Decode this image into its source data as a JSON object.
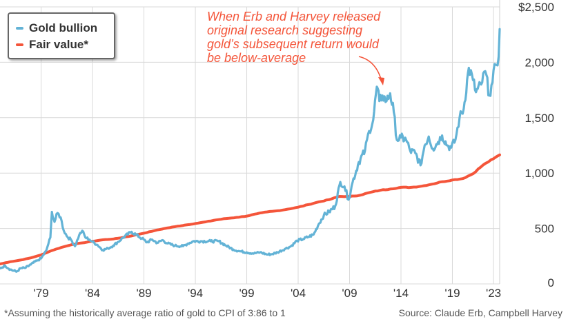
{
  "legend": {
    "gold_label": "Gold bullion",
    "fair_label": "Fair value*"
  },
  "annotation": {
    "lines": [
      "When Erb and Harvey released",
      "original research suggesting",
      "gold’s subsequent return would",
      "be below-average"
    ]
  },
  "footnote": "*Assuming the historically average ratio of gold to CPI of 3:86 to 1",
  "source": "Source: Claude Erb, Campbell Harvey",
  "colors": {
    "gold": "#63b3d6",
    "fair": "#f4553a",
    "annotation": "#f4553a"
  },
  "chart_data": {
    "type": "line",
    "x_tick_labels": [
      "'79",
      "'84",
      "'89",
      "'94",
      "'99",
      "'04",
      "'09",
      "'14",
      "'19",
      "'23"
    ],
    "x_tick_years": [
      1979,
      1984,
      1989,
      1994,
      1999,
      2004,
      2009,
      2014,
      2019,
      2023
    ],
    "y_tick_labels": [
      "0",
      "500",
      "1,000",
      "1,500",
      "2,000",
      "$2,500"
    ],
    "y_ticks": [
      0,
      500,
      1000,
      1500,
      2000,
      2500
    ],
    "ylim": [
      0,
      2500
    ],
    "xlim": [
      1975.0,
      2023.6
    ],
    "grid": true,
    "legend_position": "top-left",
    "series": [
      {
        "name": "Gold bullion",
        "points": [
          [
            1975.0,
            140
          ],
          [
            1975.5,
            165
          ],
          [
            1976.0,
            130
          ],
          [
            1976.6,
            110
          ],
          [
            1977.0,
            140
          ],
          [
            1977.5,
            145
          ],
          [
            1978.0,
            175
          ],
          [
            1978.6,
            210
          ],
          [
            1979.0,
            230
          ],
          [
            1979.5,
            300
          ],
          [
            1979.9,
            420
          ],
          [
            1980.05,
            650
          ],
          [
            1980.3,
            560
          ],
          [
            1980.6,
            640
          ],
          [
            1980.9,
            600
          ],
          [
            1981.2,
            480
          ],
          [
            1981.6,
            420
          ],
          [
            1981.9,
            400
          ],
          [
            1982.3,
            340
          ],
          [
            1982.7,
            440
          ],
          [
            1983.0,
            480
          ],
          [
            1983.3,
            420
          ],
          [
            1983.7,
            400
          ],
          [
            1984.0,
            380
          ],
          [
            1984.5,
            350
          ],
          [
            1985.0,
            305
          ],
          [
            1985.5,
            320
          ],
          [
            1986.0,
            345
          ],
          [
            1986.5,
            380
          ],
          [
            1987.0,
            420
          ],
          [
            1987.8,
            470
          ],
          [
            1988.3,
            440
          ],
          [
            1988.8,
            410
          ],
          [
            1989.3,
            375
          ],
          [
            1989.8,
            400
          ],
          [
            1990.3,
            370
          ],
          [
            1990.8,
            395
          ],
          [
            1991.3,
            365
          ],
          [
            1992.0,
            345
          ],
          [
            1992.8,
            340
          ],
          [
            1993.3,
            365
          ],
          [
            1993.8,
            385
          ],
          [
            1994.5,
            385
          ],
          [
            1995.5,
            385
          ],
          [
            1996.3,
            385
          ],
          [
            1997.0,
            345
          ],
          [
            1997.7,
            310
          ],
          [
            1998.3,
            295
          ],
          [
            1999.0,
            285
          ],
          [
            1999.7,
            275
          ],
          [
            2000.3,
            285
          ],
          [
            2001.0,
            265
          ],
          [
            2001.5,
            270
          ],
          [
            2002.0,
            285
          ],
          [
            2002.7,
            315
          ],
          [
            2003.3,
            340
          ],
          [
            2003.9,
            390
          ],
          [
            2004.5,
            405
          ],
          [
            2005.0,
            425
          ],
          [
            2005.5,
            445
          ],
          [
            2006.0,
            540
          ],
          [
            2006.5,
            620
          ],
          [
            2007.0,
            650
          ],
          [
            2007.6,
            700
          ],
          [
            2008.1,
            920
          ],
          [
            2008.5,
            880
          ],
          [
            2008.9,
            760
          ],
          [
            2009.3,
            920
          ],
          [
            2009.9,
            1100
          ],
          [
            2010.5,
            1200
          ],
          [
            2010.9,
            1380
          ],
          [
            2011.3,
            1480
          ],
          [
            2011.65,
            1780
          ],
          [
            2011.9,
            1650
          ],
          [
            2012.2,
            1700
          ],
          [
            2012.6,
            1650
          ],
          [
            2012.95,
            1720
          ],
          [
            2013.3,
            1550
          ],
          [
            2013.6,
            1300
          ],
          [
            2014.0,
            1320
          ],
          [
            2014.5,
            1300
          ],
          [
            2014.9,
            1200
          ],
          [
            2015.4,
            1180
          ],
          [
            2015.9,
            1070
          ],
          [
            2016.3,
            1250
          ],
          [
            2016.7,
            1330
          ],
          [
            2017.1,
            1220
          ],
          [
            2017.6,
            1280
          ],
          [
            2018.0,
            1340
          ],
          [
            2018.5,
            1250
          ],
          [
            2018.9,
            1230
          ],
          [
            2019.3,
            1300
          ],
          [
            2019.7,
            1500
          ],
          [
            2020.1,
            1580
          ],
          [
            2020.6,
            1950
          ],
          [
            2021.0,
            1840
          ],
          [
            2021.3,
            1730
          ],
          [
            2021.8,
            1800
          ],
          [
            2022.2,
            1920
          ],
          [
            2022.6,
            1700
          ],
          [
            2022.9,
            1820
          ],
          [
            2023.2,
            1980
          ],
          [
            2023.5,
            2050
          ],
          [
            2023.6,
            2300
          ]
        ]
      },
      {
        "name": "Fair value*",
        "points": [
          [
            1975.0,
            180
          ],
          [
            1976.0,
            200
          ],
          [
            1977.0,
            215
          ],
          [
            1978.0,
            235
          ],
          [
            1979.0,
            262
          ],
          [
            1980.0,
            300
          ],
          [
            1981.0,
            330
          ],
          [
            1982.0,
            355
          ],
          [
            1983.0,
            370
          ],
          [
            1984.0,
            385
          ],
          [
            1985.0,
            398
          ],
          [
            1986.0,
            405
          ],
          [
            1987.0,
            420
          ],
          [
            1988.0,
            438
          ],
          [
            1989.0,
            458
          ],
          [
            1990.0,
            480
          ],
          [
            1991.0,
            500
          ],
          [
            1992.0,
            516
          ],
          [
            1993.0,
            531
          ],
          [
            1994.0,
            545
          ],
          [
            1995.0,
            560
          ],
          [
            1996.0,
            577
          ],
          [
            1997.0,
            590
          ],
          [
            1998.0,
            600
          ],
          [
            1999.0,
            612
          ],
          [
            2000.0,
            633
          ],
          [
            2001.0,
            650
          ],
          [
            2002.0,
            660
          ],
          [
            2003.0,
            675
          ],
          [
            2004.0,
            692
          ],
          [
            2005.0,
            716
          ],
          [
            2006.0,
            740
          ],
          [
            2007.0,
            760
          ],
          [
            2008.0,
            790
          ],
          [
            2009.0,
            788
          ],
          [
            2010.0,
            800
          ],
          [
            2011.0,
            826
          ],
          [
            2012.0,
            845
          ],
          [
            2013.0,
            857
          ],
          [
            2014.0,
            871
          ],
          [
            2015.0,
            871
          ],
          [
            2016.0,
            882
          ],
          [
            2017.0,
            900
          ],
          [
            2018.0,
            922
          ],
          [
            2019.0,
            938
          ],
          [
            2020.0,
            950
          ],
          [
            2021.0,
            994
          ],
          [
            2022.0,
            1074
          ],
          [
            2023.0,
            1130
          ],
          [
            2023.6,
            1165
          ]
        ]
      }
    ]
  }
}
